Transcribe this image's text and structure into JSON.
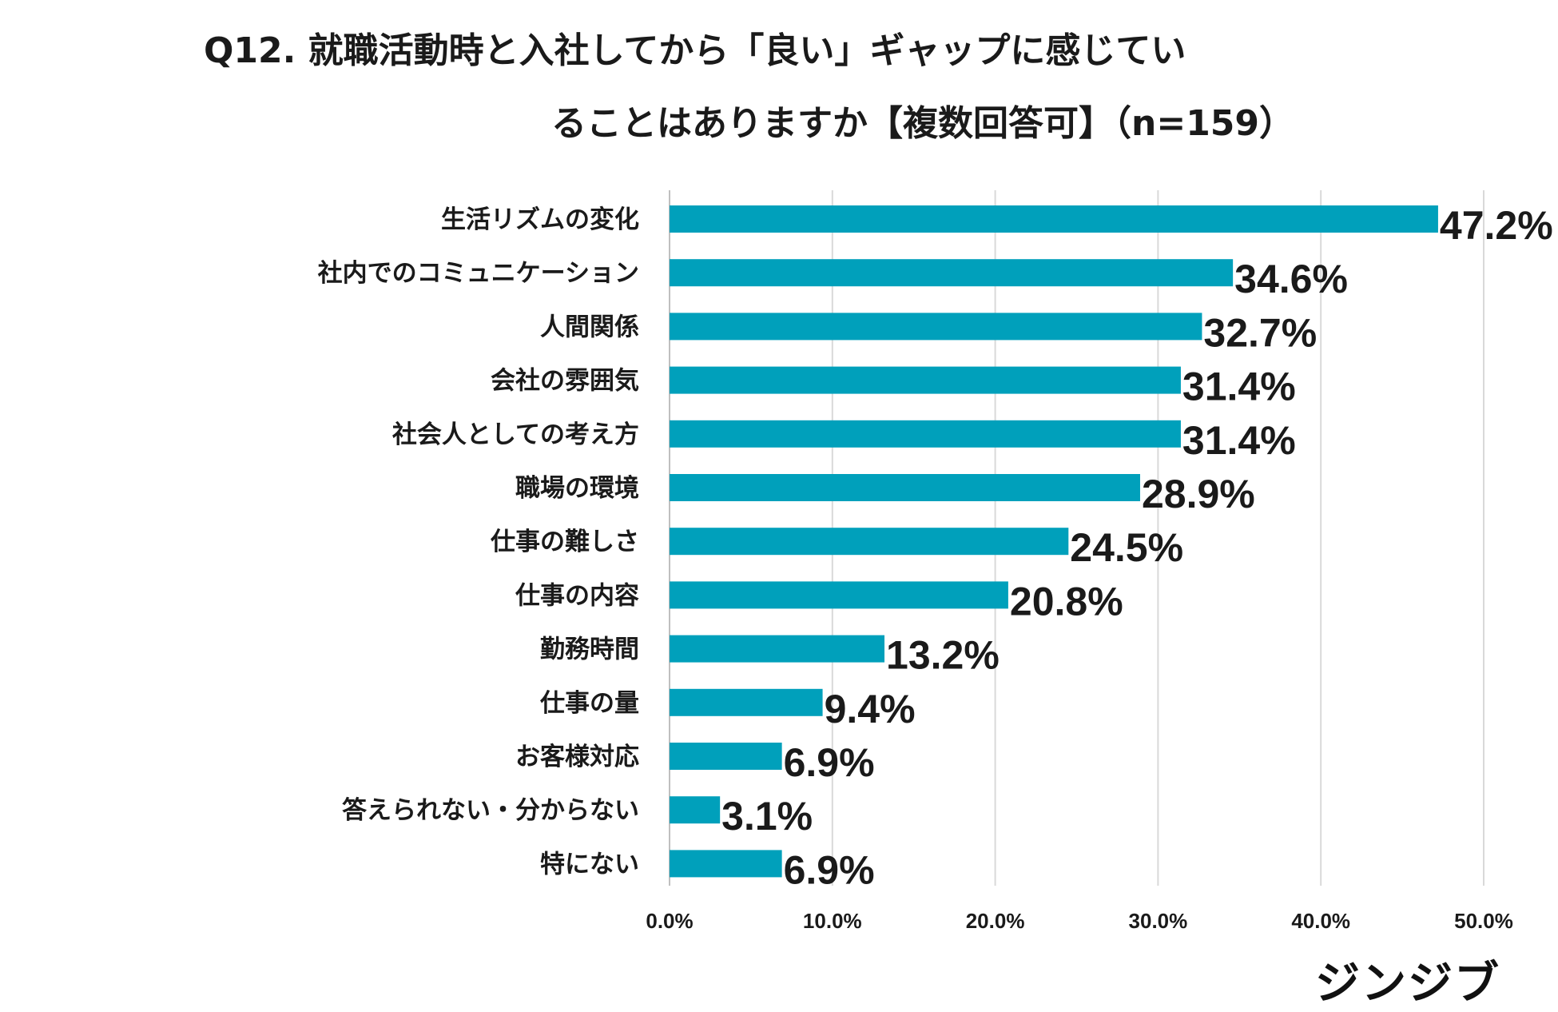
{
  "title": {
    "line1": "Q12. 就職活動時と入社してから「良い」ギャップに感じてい",
    "line2": "ることはありますか【複数回答可】（n=159）"
  },
  "logo": "ジンジブ",
  "chart_data": {
    "type": "bar",
    "orientation": "horizontal",
    "categories": [
      "生活リズムの変化",
      "社内でのコミュニケーション",
      "人間関係",
      "会社の雰囲気",
      "社会人としての考え方",
      "職場の環境",
      "仕事の難しさ",
      "仕事の内容",
      "勤務時間",
      "仕事の量",
      "お客様対応",
      "答えられない・分からない",
      "特にない"
    ],
    "values": [
      47.2,
      34.6,
      32.7,
      31.4,
      31.4,
      28.9,
      24.5,
      20.8,
      13.2,
      9.4,
      6.9,
      3.1,
      6.9
    ],
    "value_labels": [
      "47.2%",
      "34.6%",
      "32.7%",
      "31.4%",
      "31.4%",
      "28.9%",
      "24.5%",
      "20.8%",
      "13.2%",
      "9.4%",
      "6.9%",
      "3.1%",
      "6.9%"
    ],
    "xlim": [
      0,
      50
    ],
    "xticks": [
      "0.0%",
      "10.0%",
      "20.0%",
      "30.0%",
      "40.0%",
      "50.0%"
    ],
    "grid": true,
    "bar_color": "#00A0BB",
    "grid_color": "#d9d9d9"
  }
}
